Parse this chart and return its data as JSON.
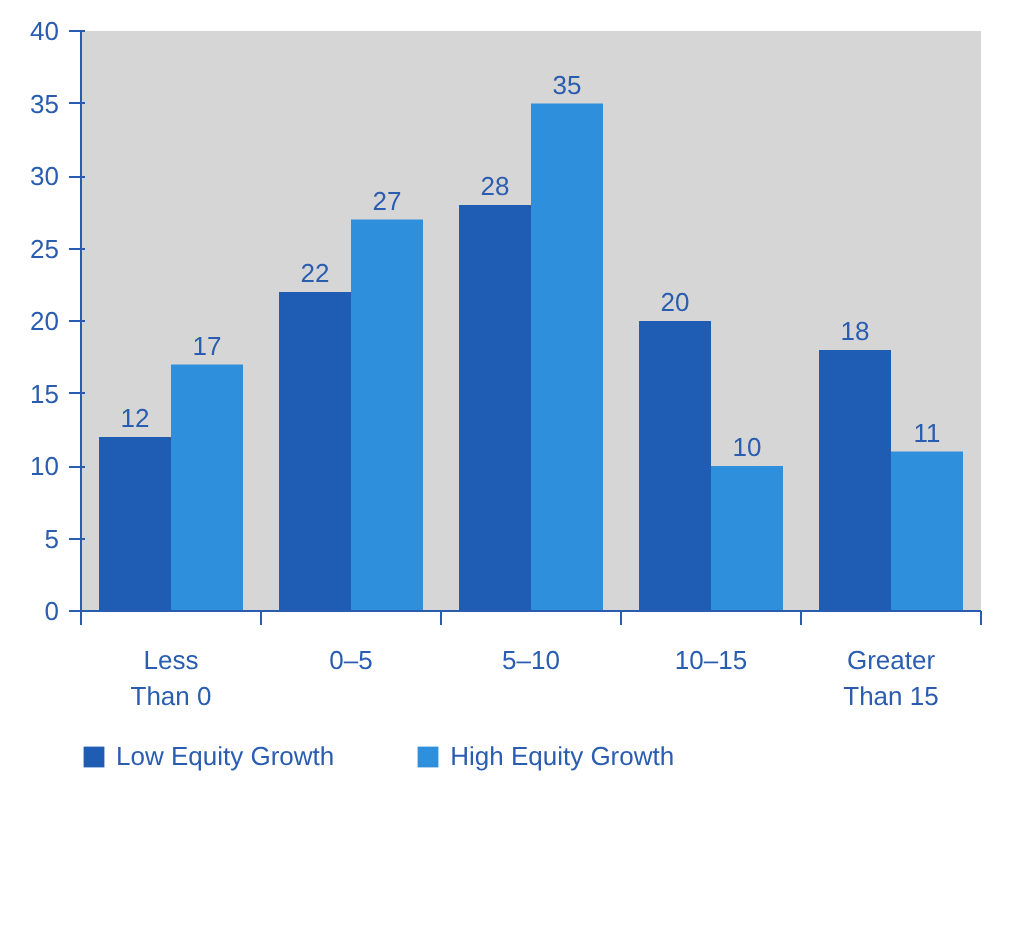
{
  "chart_data": {
    "type": "bar",
    "categories": [
      "Less\nThan 0",
      "0–5",
      "5–10",
      "10–15",
      "Greater\nThan 15"
    ],
    "series": [
      {
        "name": "Low Equity Growth",
        "color": "#1f5cb4",
        "values": [
          12,
          22,
          28,
          20,
          18
        ]
      },
      {
        "name": "High Equity Growth",
        "color": "#2e8fdc",
        "values": [
          17,
          27,
          35,
          10,
          11
        ]
      }
    ],
    "ylim": [
      0,
      40
    ],
    "yticks": [
      0,
      5,
      10,
      15,
      20,
      25,
      30,
      35,
      40
    ],
    "data_labels": true,
    "grid": false,
    "legend": "bottom"
  }
}
